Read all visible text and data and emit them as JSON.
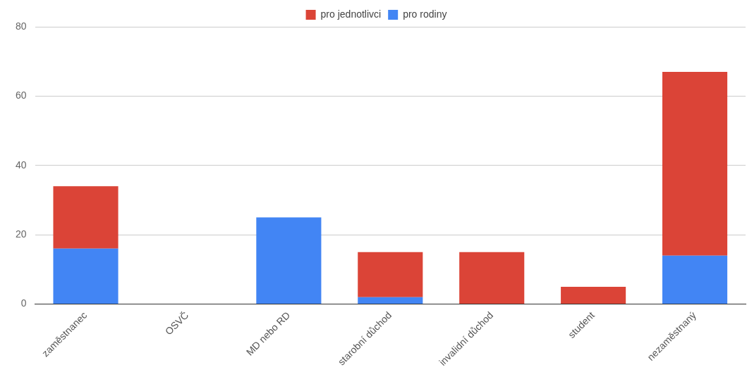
{
  "chart_data": {
    "type": "bar",
    "stacked": true,
    "categories": [
      "zaměstnanec",
      "OSVČ",
      "MD nebo RD",
      "starobní důchod",
      "invalidní důchod",
      "student",
      "nezaměstnaný"
    ],
    "series": [
      {
        "name": "pro rodiny",
        "color": "#4285f4",
        "values": [
          16,
          0,
          25,
          2,
          0,
          0,
          14
        ]
      },
      {
        "name": "pro jednotlivci",
        "color": "#db4437",
        "values": [
          18,
          0,
          0,
          13,
          15,
          5,
          53
        ]
      }
    ],
    "ylim": [
      0,
      80
    ],
    "yticks": [
      0,
      20,
      40,
      60,
      80
    ],
    "grid": "y",
    "legend": "top"
  }
}
